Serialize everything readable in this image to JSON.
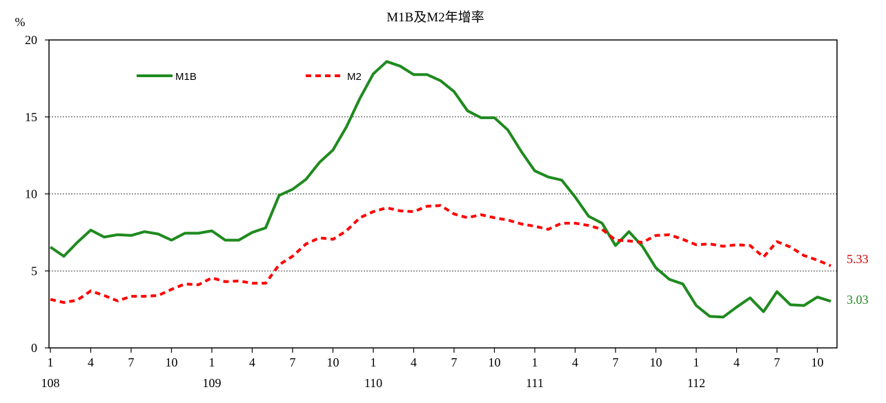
{
  "chart_data": {
    "type": "line",
    "title": "M1B及M2年增率",
    "y_unit": "%",
    "ylim": [
      0,
      20
    ],
    "yticks": [
      0,
      5,
      10,
      15,
      20
    ],
    "grid": "horizontal dotted at 5, 10, 15",
    "legend_placement": "top-left",
    "x_tick_months": [
      "1",
      "4",
      "7",
      "10",
      "1",
      "4",
      "7",
      "10",
      "1",
      "4",
      "7",
      "10",
      "1",
      "4",
      "7",
      "10",
      "1",
      "4",
      "7",
      "10"
    ],
    "x_year_labels": [
      "108",
      "109",
      "110",
      "111",
      "112"
    ],
    "x": [
      "108/01",
      "108/02",
      "108/03",
      "108/04",
      "108/05",
      "108/06",
      "108/07",
      "108/08",
      "108/09",
      "108/10",
      "108/11",
      "108/12",
      "109/01",
      "109/02",
      "109/03",
      "109/04",
      "109/05",
      "109/06",
      "109/07",
      "109/08",
      "109/09",
      "109/10",
      "109/11",
      "109/12",
      "110/01",
      "110/02",
      "110/03",
      "110/04",
      "110/05",
      "110/06",
      "110/07",
      "110/08",
      "110/09",
      "110/10",
      "110/11",
      "110/12",
      "111/01",
      "111/02",
      "111/03",
      "111/04",
      "111/05",
      "111/06",
      "111/07",
      "111/08",
      "111/09",
      "111/10",
      "111/11",
      "111/12",
      "112/01",
      "112/02",
      "112/03",
      "112/04",
      "112/05",
      "112/06",
      "112/07",
      "112/08",
      "112/09",
      "112/10",
      "112/11"
    ],
    "series": [
      {
        "name": "M1B",
        "color": "#1f8a1f",
        "style": "solid",
        "end_label": "3.03",
        "values": [
          6.55,
          5.95,
          6.85,
          7.65,
          7.2,
          7.35,
          7.3,
          7.55,
          7.4,
          7.0,
          7.45,
          7.45,
          7.6,
          7.0,
          7.0,
          7.5,
          7.8,
          9.9,
          10.3,
          10.95,
          12.05,
          12.85,
          14.35,
          16.2,
          17.8,
          18.6,
          18.3,
          17.75,
          17.75,
          17.35,
          16.65,
          15.4,
          14.95,
          14.95,
          14.15,
          12.75,
          11.5,
          11.1,
          10.9,
          9.8,
          8.55,
          8.1,
          6.65,
          7.55,
          6.6,
          5.2,
          4.45,
          4.15,
          2.75,
          2.05,
          2.0,
          2.65,
          3.25,
          2.35,
          3.65,
          2.8,
          2.75,
          3.3,
          3.03
        ]
      },
      {
        "name": "M2",
        "color": "#ff0000",
        "style": "dashed",
        "end_label": "5.33",
        "values": [
          3.15,
          2.95,
          3.1,
          3.7,
          3.4,
          3.05,
          3.35,
          3.35,
          3.4,
          3.8,
          4.15,
          4.1,
          4.55,
          4.3,
          4.35,
          4.2,
          4.2,
          5.4,
          5.95,
          6.75,
          7.15,
          7.05,
          7.6,
          8.45,
          8.85,
          9.1,
          8.9,
          8.85,
          9.2,
          9.25,
          8.7,
          8.45,
          8.65,
          8.45,
          8.3,
          8.05,
          7.9,
          7.7,
          8.1,
          8.1,
          7.95,
          7.7,
          7.0,
          6.95,
          6.85,
          7.3,
          7.35,
          7.05,
          6.7,
          6.75,
          6.6,
          6.7,
          6.65,
          5.9,
          6.9,
          6.55,
          6.0,
          5.7,
          5.33
        ]
      }
    ]
  }
}
